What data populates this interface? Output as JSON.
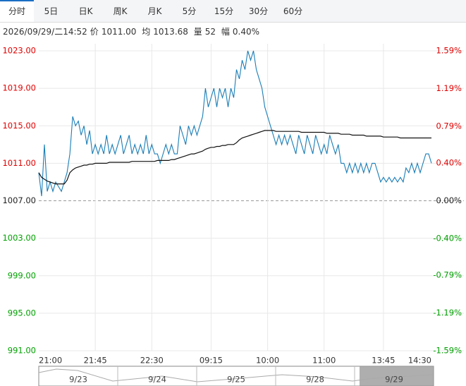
{
  "tabs": [
    "分时",
    "5日",
    "日K",
    "周K",
    "月K",
    "5分",
    "15分",
    "30分",
    "60分"
  ],
  "active_tab": 0,
  "info": {
    "time": "2026/09/29/二14:52",
    "price_label": "价",
    "price": "1011.00",
    "avg_label": "均",
    "avg": "1013.68",
    "vol_label": "量",
    "vol": "52",
    "amp_label": "幅",
    "amp": "0.40%"
  },
  "chart_data": {
    "type": "line",
    "base": 1007,
    "up_color": "#e00000",
    "down_color": "#00a000",
    "flat_color": "#222222",
    "ylim": [
      991,
      1023
    ],
    "yticks": [
      {
        "value": 1023,
        "label": "1023.00"
      },
      {
        "value": 1019,
        "label": "1019.00"
      },
      {
        "value": 1015,
        "label": "1015.00"
      },
      {
        "value": 1011,
        "label": "1011.00"
      },
      {
        "value": 1007,
        "label": "1007.00"
      },
      {
        "value": 1003,
        "label": "1003.00"
      },
      {
        "value": 999,
        "label": "999.00"
      },
      {
        "value": 995,
        "label": "995.00"
      },
      {
        "value": 991,
        "label": "991.00"
      }
    ],
    "y2lim": [
      -1.59,
      1.59
    ],
    "y2ticks": [
      {
        "value": 1.59,
        "label": "1.59%"
      },
      {
        "value": 1.19,
        "label": "1.19%"
      },
      {
        "value": 0.79,
        "label": "0.79%"
      },
      {
        "value": 0.4,
        "label": "0.40%"
      },
      {
        "value": 0,
        "label": "0.00%"
      },
      {
        "value": -0.4,
        "label": "-0.40%"
      },
      {
        "value": -0.79,
        "label": "-0.79%"
      },
      {
        "value": -1.19,
        "label": "-1.19%"
      },
      {
        "value": -1.59,
        "label": "-1.59%"
      }
    ],
    "xlim": [
      0,
      139
    ],
    "xticks": [
      {
        "value": 0,
        "label": "21:00"
      },
      {
        "value": 20,
        "label": "21:45"
      },
      {
        "value": 40,
        "label": "22:30"
      },
      {
        "value": 61,
        "label": "09:15"
      },
      {
        "value": 81,
        "label": "10:00"
      },
      {
        "value": 101,
        "label": "11:00"
      },
      {
        "value": 122,
        "label": "13:45"
      },
      {
        "value": 139,
        "label": "14:30"
      }
    ],
    "grid": true,
    "series": [
      {
        "name": "价",
        "color": "#1a7db6",
        "values": [
          1010,
          1007.5,
          1013,
          1008,
          1009,
          1008,
          1009,
          1008.5,
          1008,
          1009,
          1010,
          1012,
          1016,
          1015,
          1015.5,
          1014,
          1015,
          1013,
          1014.5,
          1012,
          1013,
          1012,
          1013,
          1012,
          1014,
          1012,
          1013,
          1012,
          1013,
          1014,
          1012,
          1013,
          1014,
          1012,
          1013,
          1012,
          1013,
          1012,
          1014,
          1012,
          1013,
          1012,
          1012,
          1011,
          1012,
          1013,
          1012,
          1013,
          1012,
          1012,
          1015,
          1014,
          1013,
          1015,
          1014,
          1015,
          1014,
          1015,
          1016,
          1019,
          1017,
          1018,
          1019,
          1017,
          1019,
          1018,
          1019,
          1017,
          1019,
          1018,
          1021,
          1020,
          1022,
          1021,
          1023,
          1022,
          1023,
          1021,
          1020,
          1019,
          1017,
          1016,
          1015,
          1014,
          1013,
          1014,
          1013,
          1014,
          1013,
          1014,
          1013,
          1012,
          1014,
          1013,
          1012,
          1014,
          1013,
          1012,
          1014,
          1013,
          1012,
          1013,
          1012,
          1014,
          1013,
          1012,
          1013,
          1011,
          1011,
          1010,
          1011,
          1010,
          1011,
          1010,
          1011,
          1010,
          1011,
          1010,
          1011,
          1011,
          1010,
          1009,
          1009.5,
          1009,
          1009.5,
          1009,
          1009.5,
          1009,
          1009.5,
          1009,
          1010.5,
          1010,
          1011,
          1010,
          1011,
          1010,
          1011,
          1012,
          1012,
          1011
        ]
      },
      {
        "name": "均",
        "color": "#111111",
        "values": [
          1010,
          1009.5,
          1009.3,
          1009.1,
          1009,
          1008.9,
          1008.8,
          1008.8,
          1008.8,
          1008.8,
          1009.2,
          1010,
          1010.3,
          1010.5,
          1010.6,
          1010.7,
          1010.8,
          1010.8,
          1010.9,
          1010.9,
          1011,
          1011,
          1011,
          1011,
          1011,
          1011.1,
          1011.1,
          1011.1,
          1011.1,
          1011.1,
          1011.1,
          1011.1,
          1011.1,
          1011.2,
          1011.2,
          1011.2,
          1011.2,
          1011.2,
          1011.2,
          1011.2,
          1011.2,
          1011.2,
          1011.3,
          1011.3,
          1011.3,
          1011.3,
          1011.3,
          1011.4,
          1011.4,
          1011.5,
          1011.6,
          1011.7,
          1011.8,
          1011.9,
          1012,
          1012,
          1012.1,
          1012.2,
          1012.3,
          1012.5,
          1012.6,
          1012.7,
          1012.7,
          1012.8,
          1012.8,
          1012.9,
          1012.9,
          1013,
          1013,
          1013,
          1013.2,
          1013.5,
          1013.7,
          1013.8,
          1013.9,
          1014,
          1014.1,
          1014.2,
          1014.3,
          1014.4,
          1014.5,
          1014.5,
          1014.5,
          1014.5,
          1014.4,
          1014.4,
          1014.4,
          1014.4,
          1014.4,
          1014.4,
          1014.4,
          1014.4,
          1014.4,
          1014.3,
          1014.3,
          1014.3,
          1014.3,
          1014.3,
          1014.3,
          1014.3,
          1014.3,
          1014.3,
          1014.2,
          1014.2,
          1014.2,
          1014.2,
          1014.2,
          1014.1,
          1014.1,
          1014.1,
          1014.1,
          1014,
          1014,
          1014,
          1014,
          1014,
          1013.9,
          1013.9,
          1013.9,
          1013.9,
          1013.9,
          1013.9,
          1013.8,
          1013.8,
          1013.8,
          1013.8,
          1013.8,
          1013.8,
          1013.7,
          1013.7,
          1013.7,
          1013.7,
          1013.7,
          1013.7,
          1013.7,
          1013.7,
          1013.7,
          1013.7,
          1013.7,
          1013.7
        ]
      }
    ]
  },
  "navigator": {
    "labels": [
      "9/23",
      "9/24",
      "9/25",
      "9/28",
      "9/29"
    ]
  }
}
